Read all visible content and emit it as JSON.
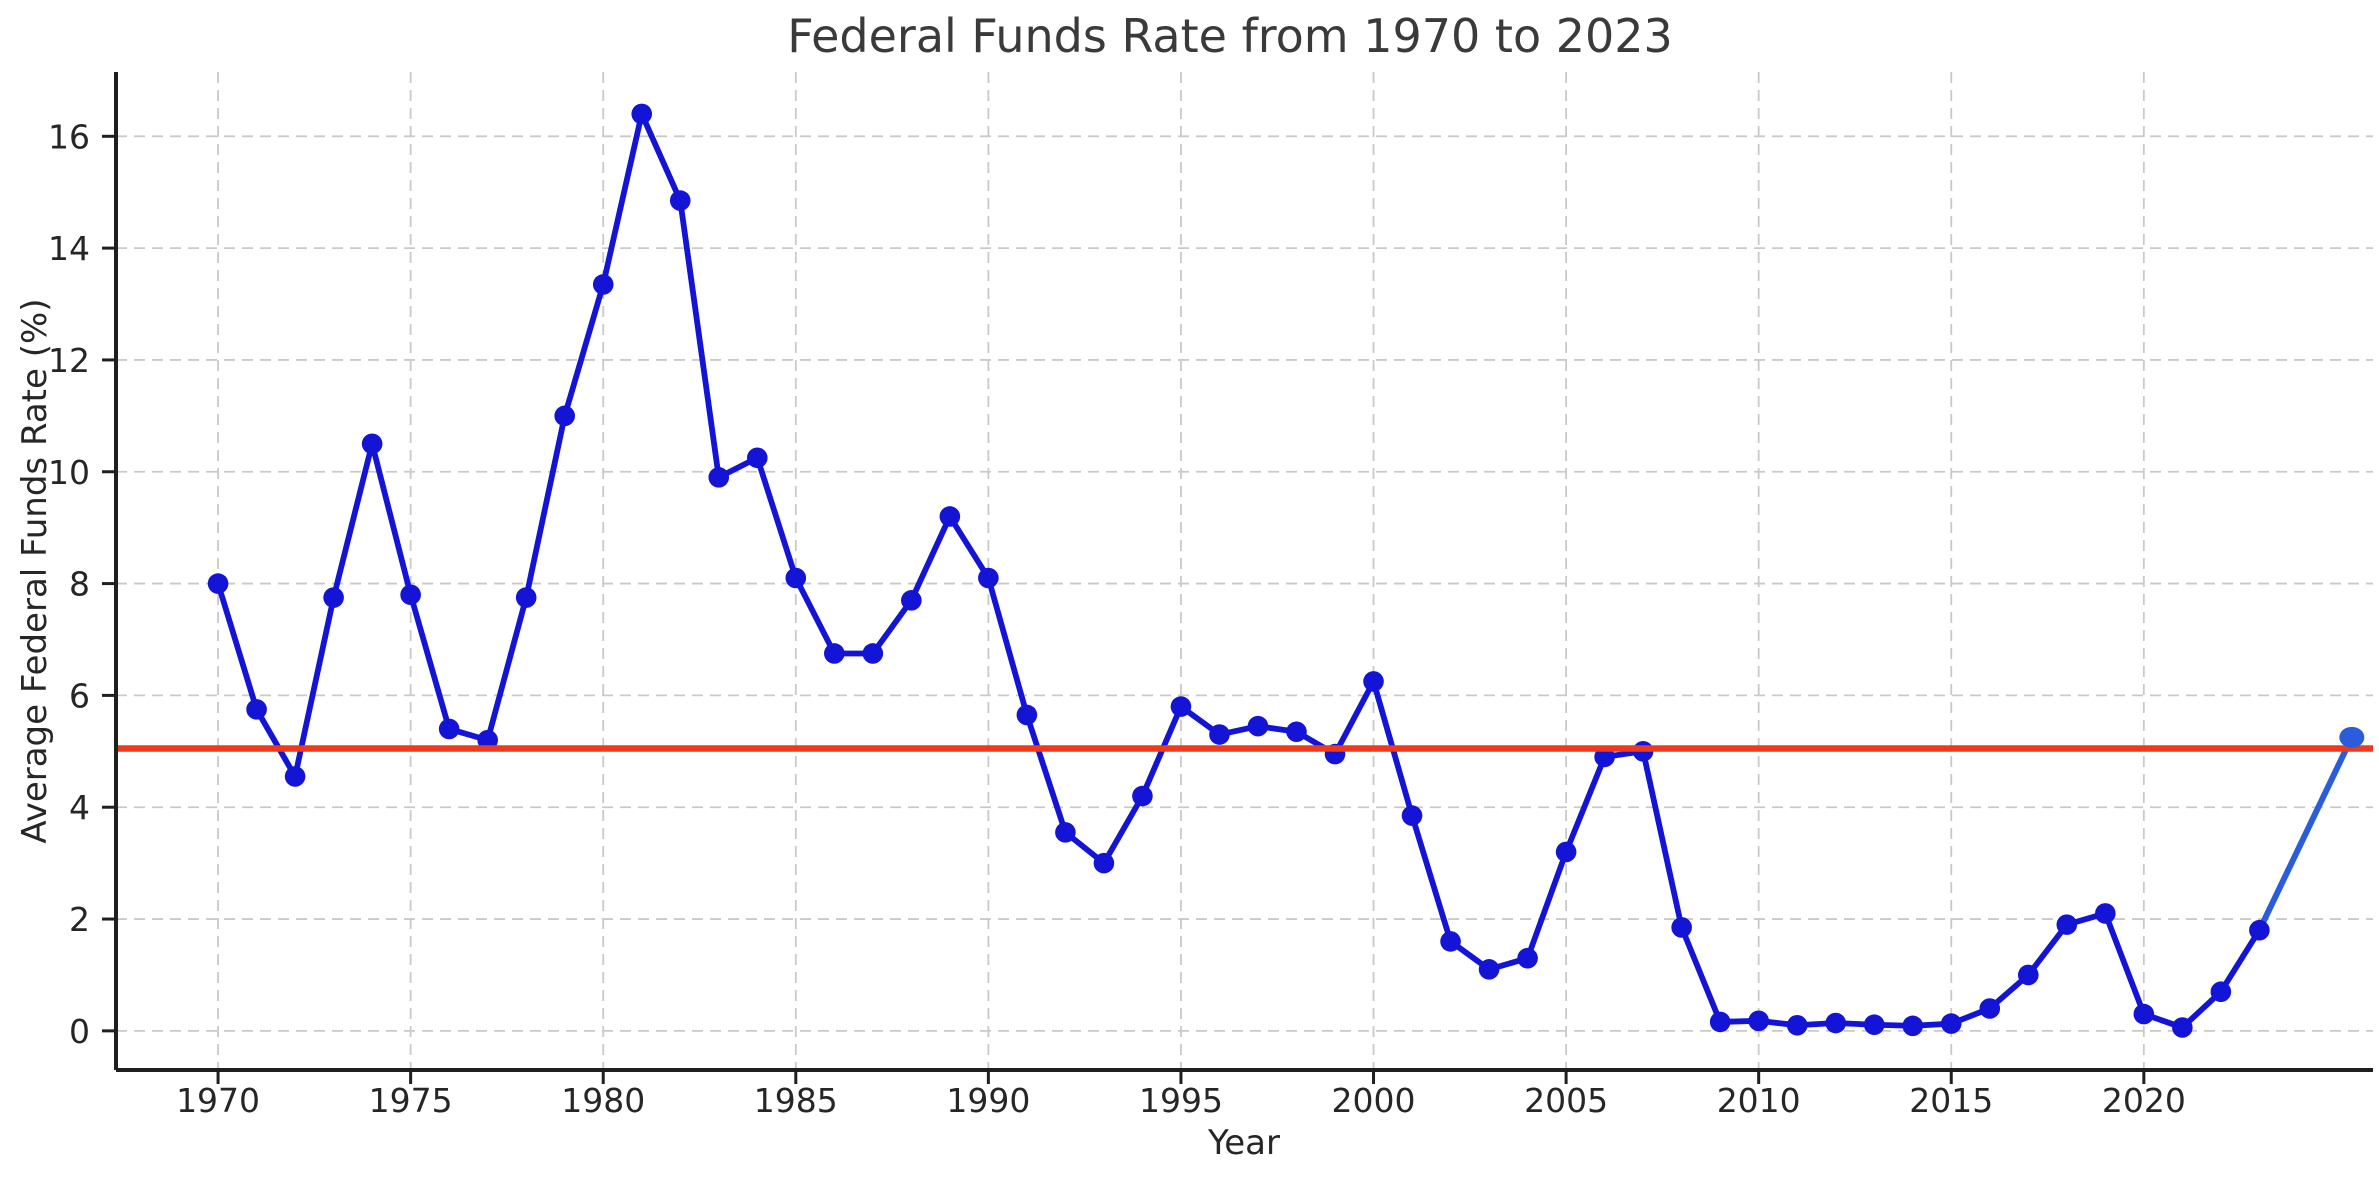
{
  "chart_data": {
    "type": "line",
    "title": "Federal Funds Rate from 1970 to 2023",
    "xlabel": "Year",
    "ylabel": "Average Federal Funds Rate (%)",
    "legend": false,
    "grid": true,
    "xlim": [
      1967.35,
      2025.95
    ],
    "ylim": [
      -0.7,
      17.15
    ],
    "x_ticks": [
      1970,
      1975,
      1980,
      1985,
      1990,
      1995,
      2000,
      2005,
      2010,
      2015,
      2020
    ],
    "y_ticks": [
      0,
      2,
      4,
      6,
      8,
      10,
      12,
      14,
      16
    ],
    "x": [
      1970,
      1971,
      1972,
      1973,
      1974,
      1975,
      1976,
      1977,
      1978,
      1979,
      1980,
      1981,
      1982,
      1983,
      1984,
      1985,
      1986,
      1987,
      1988,
      1989,
      1990,
      1991,
      1992,
      1993,
      1994,
      1995,
      1996,
      1997,
      1998,
      1999,
      2000,
      2001,
      2002,
      2003,
      2004,
      2005,
      2006,
      2007,
      2008,
      2009,
      2010,
      2011,
      2012,
      2013,
      2014,
      2015,
      2016,
      2017,
      2018,
      2019,
      2020,
      2021,
      2022,
      2023
    ],
    "series": [
      {
        "name": "Average Federal Funds Rate",
        "color": "#1414d6",
        "marker_radius": 10.3,
        "line_width": 5.8,
        "values": [
          8.0,
          5.75,
          4.55,
          7.75,
          10.5,
          7.8,
          5.4,
          5.2,
          7.75,
          11.0,
          13.35,
          16.4,
          14.85,
          9.9,
          10.25,
          8.1,
          6.75,
          6.75,
          7.7,
          9.2,
          8.1,
          5.65,
          3.55,
          3.0,
          4.2,
          5.8,
          5.3,
          5.45,
          5.35,
          4.95,
          6.25,
          3.85,
          1.6,
          1.1,
          1.3,
          3.2,
          4.9,
          5.0,
          1.85,
          0.16,
          0.18,
          0.1,
          0.14,
          0.11,
          0.09,
          0.13,
          0.4,
          1.0,
          1.9,
          2.1,
          0.3,
          0.06,
          0.7,
          1.8
        ]
      }
    ],
    "highlight_point": {
      "x": 2025.4,
      "value": 5.25,
      "color": "#2a5cdb",
      "marker_radius": 11.5,
      "line_width": 6
    },
    "reference_line": {
      "value": 5.05,
      "color": "#ee3a1c",
      "line_width": 6.5
    },
    "grid_color": "#c9c9c9",
    "axis_color": "#1f1f1f",
    "text_color": "#262626"
  }
}
